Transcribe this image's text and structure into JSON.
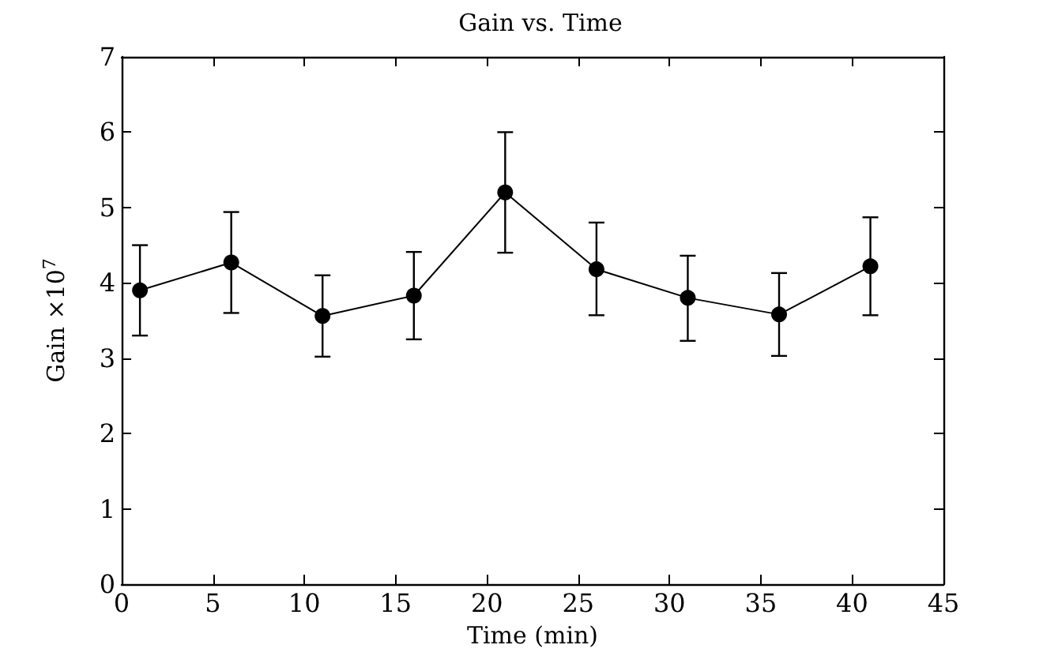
{
  "chart_data": {
    "type": "line",
    "title": "Gain vs. Time",
    "xlabel": "Time (min)",
    "ylabel": "Gain ×10$^{7}$",
    "x": [
      1,
      6,
      11,
      16,
      21,
      26,
      31,
      36,
      41
    ],
    "series": [
      {
        "color": "#000000",
        "values": [
          3.9,
          4.27,
          3.56,
          3.83,
          5.2,
          4.18,
          3.8,
          3.58,
          4.22
        ],
        "errors": [
          [
            3.3,
            4.5
          ],
          [
            3.6,
            4.94
          ],
          [
            3.02,
            4.1
          ],
          [
            3.25,
            4.41
          ],
          [
            4.4,
            6.0
          ],
          [
            3.57,
            4.8
          ],
          [
            3.23,
            4.36
          ],
          [
            3.03,
            4.13
          ],
          [
            3.57,
            4.87
          ]
        ]
      }
    ],
    "xlim": [
      0,
      45
    ],
    "xticks": [
      0,
      5,
      10,
      15,
      20,
      25,
      30,
      35,
      40,
      45
    ],
    "ylim": [
      0,
      7
    ],
    "yticks": [
      0,
      1,
      2,
      3,
      4,
      5,
      6,
      7
    ],
    "marker": "circle",
    "line_style": "solid"
  }
}
